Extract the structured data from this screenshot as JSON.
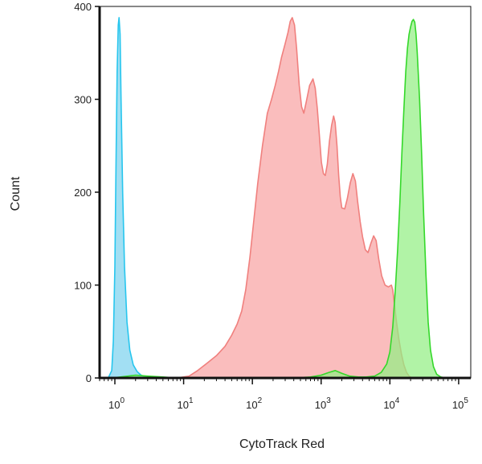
{
  "chart_data": {
    "type": "area",
    "title": "",
    "xlabel": "CytoTrack Red",
    "ylabel": "Count",
    "x_scale": "log10",
    "xlim": [
      0.6,
      150000
    ],
    "ylim": [
      0,
      400
    ],
    "y_ticks": [
      0,
      100,
      200,
      300,
      400
    ],
    "x_ticks": [
      {
        "value": 1,
        "base": "10",
        "exp": "0"
      },
      {
        "value": 10,
        "base": "10",
        "exp": "1"
      },
      {
        "value": 100,
        "base": "10",
        "exp": "2"
      },
      {
        "value": 1000,
        "base": "10",
        "exp": "3"
      },
      {
        "value": 10000,
        "base": "10",
        "exp": "4"
      },
      {
        "value": 100000,
        "base": "10",
        "exp": "5"
      }
    ],
    "grid": false,
    "legend": "none",
    "series": [
      {
        "color": "#f0807e",
        "fill": "#f8a3a3",
        "points": [
          [
            8,
            0
          ],
          [
            12,
            2
          ],
          [
            16,
            8
          ],
          [
            22,
            16
          ],
          [
            30,
            24
          ],
          [
            40,
            34
          ],
          [
            50,
            46
          ],
          [
            60,
            58
          ],
          [
            70,
            72
          ],
          [
            80,
            95
          ],
          [
            92,
            130
          ],
          [
            105,
            170
          ],
          [
            120,
            210
          ],
          [
            140,
            250
          ],
          [
            165,
            285
          ],
          [
            190,
            300
          ],
          [
            215,
            315
          ],
          [
            240,
            330
          ],
          [
            265,
            345
          ],
          [
            300,
            360
          ],
          [
            330,
            372
          ],
          [
            355,
            384
          ],
          [
            380,
            388
          ],
          [
            410,
            380
          ],
          [
            440,
            355
          ],
          [
            480,
            315
          ],
          [
            520,
            292
          ],
          [
            560,
            285
          ],
          [
            610,
            298
          ],
          [
            680,
            315
          ],
          [
            760,
            322
          ],
          [
            820,
            312
          ],
          [
            880,
            290
          ],
          [
            940,
            262
          ],
          [
            1010,
            232
          ],
          [
            1080,
            220
          ],
          [
            1150,
            218
          ],
          [
            1230,
            230
          ],
          [
            1320,
            255
          ],
          [
            1420,
            272
          ],
          [
            1520,
            282
          ],
          [
            1600,
            275
          ],
          [
            1700,
            250
          ],
          [
            1800,
            218
          ],
          [
            1900,
            195
          ],
          [
            2000,
            183
          ],
          [
            2200,
            182
          ],
          [
            2400,
            193
          ],
          [
            2650,
            210
          ],
          [
            2900,
            220
          ],
          [
            3150,
            212
          ],
          [
            3400,
            190
          ],
          [
            3700,
            168
          ],
          [
            4000,
            152
          ],
          [
            4400,
            138
          ],
          [
            4800,
            135
          ],
          [
            5300,
            145
          ],
          [
            5800,
            153
          ],
          [
            6300,
            148
          ],
          [
            6900,
            128
          ],
          [
            7600,
            110
          ],
          [
            8500,
            100
          ],
          [
            9500,
            98
          ],
          [
            10500,
            100
          ],
          [
            11000,
            95
          ],
          [
            11600,
            80
          ],
          [
            12500,
            60
          ],
          [
            13500,
            42
          ],
          [
            14700,
            26
          ],
          [
            16000,
            14
          ],
          [
            17500,
            6
          ],
          [
            19000,
            2
          ],
          [
            21000,
            0
          ]
        ]
      },
      {
        "color": "#27c6ee",
        "fill": "#7ed3ee",
        "points": [
          [
            0.8,
            0
          ],
          [
            0.9,
            8
          ],
          [
            0.95,
            40
          ],
          [
            1.0,
            120
          ],
          [
            1.04,
            230
          ],
          [
            1.08,
            330
          ],
          [
            1.12,
            380
          ],
          [
            1.15,
            388
          ],
          [
            1.19,
            370
          ],
          [
            1.23,
            300
          ],
          [
            1.3,
            200
          ],
          [
            1.38,
            120
          ],
          [
            1.5,
            60
          ],
          [
            1.65,
            30
          ],
          [
            1.85,
            14
          ],
          [
            2.1,
            7
          ],
          [
            2.4,
            3
          ],
          [
            2.8,
            1
          ],
          [
            3.3,
            0
          ]
        ]
      },
      {
        "color": "#34d82a",
        "fill": "#93ee84",
        "points": [
          [
            0.9,
            0
          ],
          [
            1.2,
            1
          ],
          [
            2,
            3
          ],
          [
            3,
            2
          ],
          [
            5,
            1
          ],
          [
            8,
            0
          ],
          [
            400,
            0
          ],
          [
            700,
            1
          ],
          [
            1000,
            3
          ],
          [
            1300,
            6
          ],
          [
            1600,
            8
          ],
          [
            2000,
            5
          ],
          [
            2600,
            2
          ],
          [
            3500,
            1
          ],
          [
            4500,
            1
          ],
          [
            6000,
            2
          ],
          [
            7500,
            6
          ],
          [
            9000,
            15
          ],
          [
            10000,
            28
          ],
          [
            11000,
            55
          ],
          [
            12000,
            95
          ],
          [
            13000,
            140
          ],
          [
            14000,
            190
          ],
          [
            15000,
            245
          ],
          [
            16000,
            290
          ],
          [
            17000,
            330
          ],
          [
            18000,
            355
          ],
          [
            19000,
            370
          ],
          [
            20000,
            378
          ],
          [
            21000,
            384
          ],
          [
            22000,
            386
          ],
          [
            23000,
            383
          ],
          [
            24000,
            370
          ],
          [
            25000,
            350
          ],
          [
            27000,
            300
          ],
          [
            29000,
            240
          ],
          [
            31000,
            175
          ],
          [
            33500,
            110
          ],
          [
            36000,
            60
          ],
          [
            39000,
            30
          ],
          [
            43000,
            12
          ],
          [
            48000,
            4
          ],
          [
            55000,
            1
          ],
          [
            65000,
            0
          ]
        ]
      }
    ]
  }
}
